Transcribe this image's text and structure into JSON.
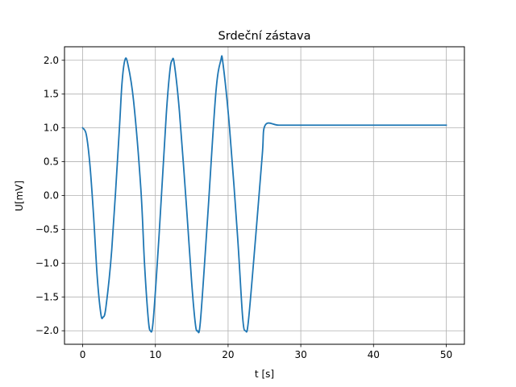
{
  "chart_data": {
    "type": "line",
    "title": "Srdeční zástava",
    "xlabel": "t [s]",
    "ylabel": "U[mV]",
    "xlim": [
      -2.5,
      52.5
    ],
    "ylim": [
      -2.2,
      2.2
    ],
    "xticks": [
      0,
      10,
      20,
      30,
      40,
      50
    ],
    "xtick_labels": [
      "0",
      "10",
      "20",
      "30",
      "40",
      "50"
    ],
    "yticks": [
      -2.0,
      -1.5,
      -1.0,
      -0.5,
      0.0,
      0.5,
      1.0,
      1.5,
      2.0
    ],
    "ytick_labels": [
      "−2.0",
      "−1.5",
      "−1.0",
      "−0.5",
      "0.0",
      "0.5",
      "1.0",
      "1.5",
      "2.0"
    ],
    "grid": true,
    "legend": "none",
    "series": [
      {
        "color": "#1f77b4",
        "x": [
          0,
          0.5,
          1,
          1.5,
          2,
          2.5,
          2.8,
          3.2,
          4,
          5,
          5.4,
          5.8,
          6.2,
          7,
          8,
          8.5,
          9,
          9.3,
          9.7,
          10.5,
          11.5,
          12,
          12.3,
          12.6,
          13.3,
          14.3,
          15,
          15.5,
          15.8,
          16.2,
          17.2,
          18.3,
          19,
          19.3,
          20.2,
          21.3,
          22,
          22.4,
          22.8,
          23.8,
          24.7,
          25.1,
          27,
          30,
          35,
          40,
          45,
          50
        ],
        "y": [
          1.0,
          0.9,
          0.45,
          -0.3,
          -1.2,
          -1.75,
          -1.8,
          -1.65,
          -0.8,
          0.9,
          1.65,
          2.0,
          1.95,
          1.4,
          0.1,
          -1.0,
          -1.8,
          -2.0,
          -1.85,
          -0.6,
          1.2,
          1.85,
          2.0,
          1.95,
          1.25,
          -0.2,
          -1.3,
          -1.9,
          -2.0,
          -1.85,
          -0.3,
          1.5,
          2.0,
          1.95,
          1.0,
          -0.6,
          -1.8,
          -2.0,
          -1.85,
          -0.6,
          0.6,
          1.04,
          1.04,
          1.04,
          1.04,
          1.04,
          1.04,
          1.04
        ]
      }
    ]
  }
}
